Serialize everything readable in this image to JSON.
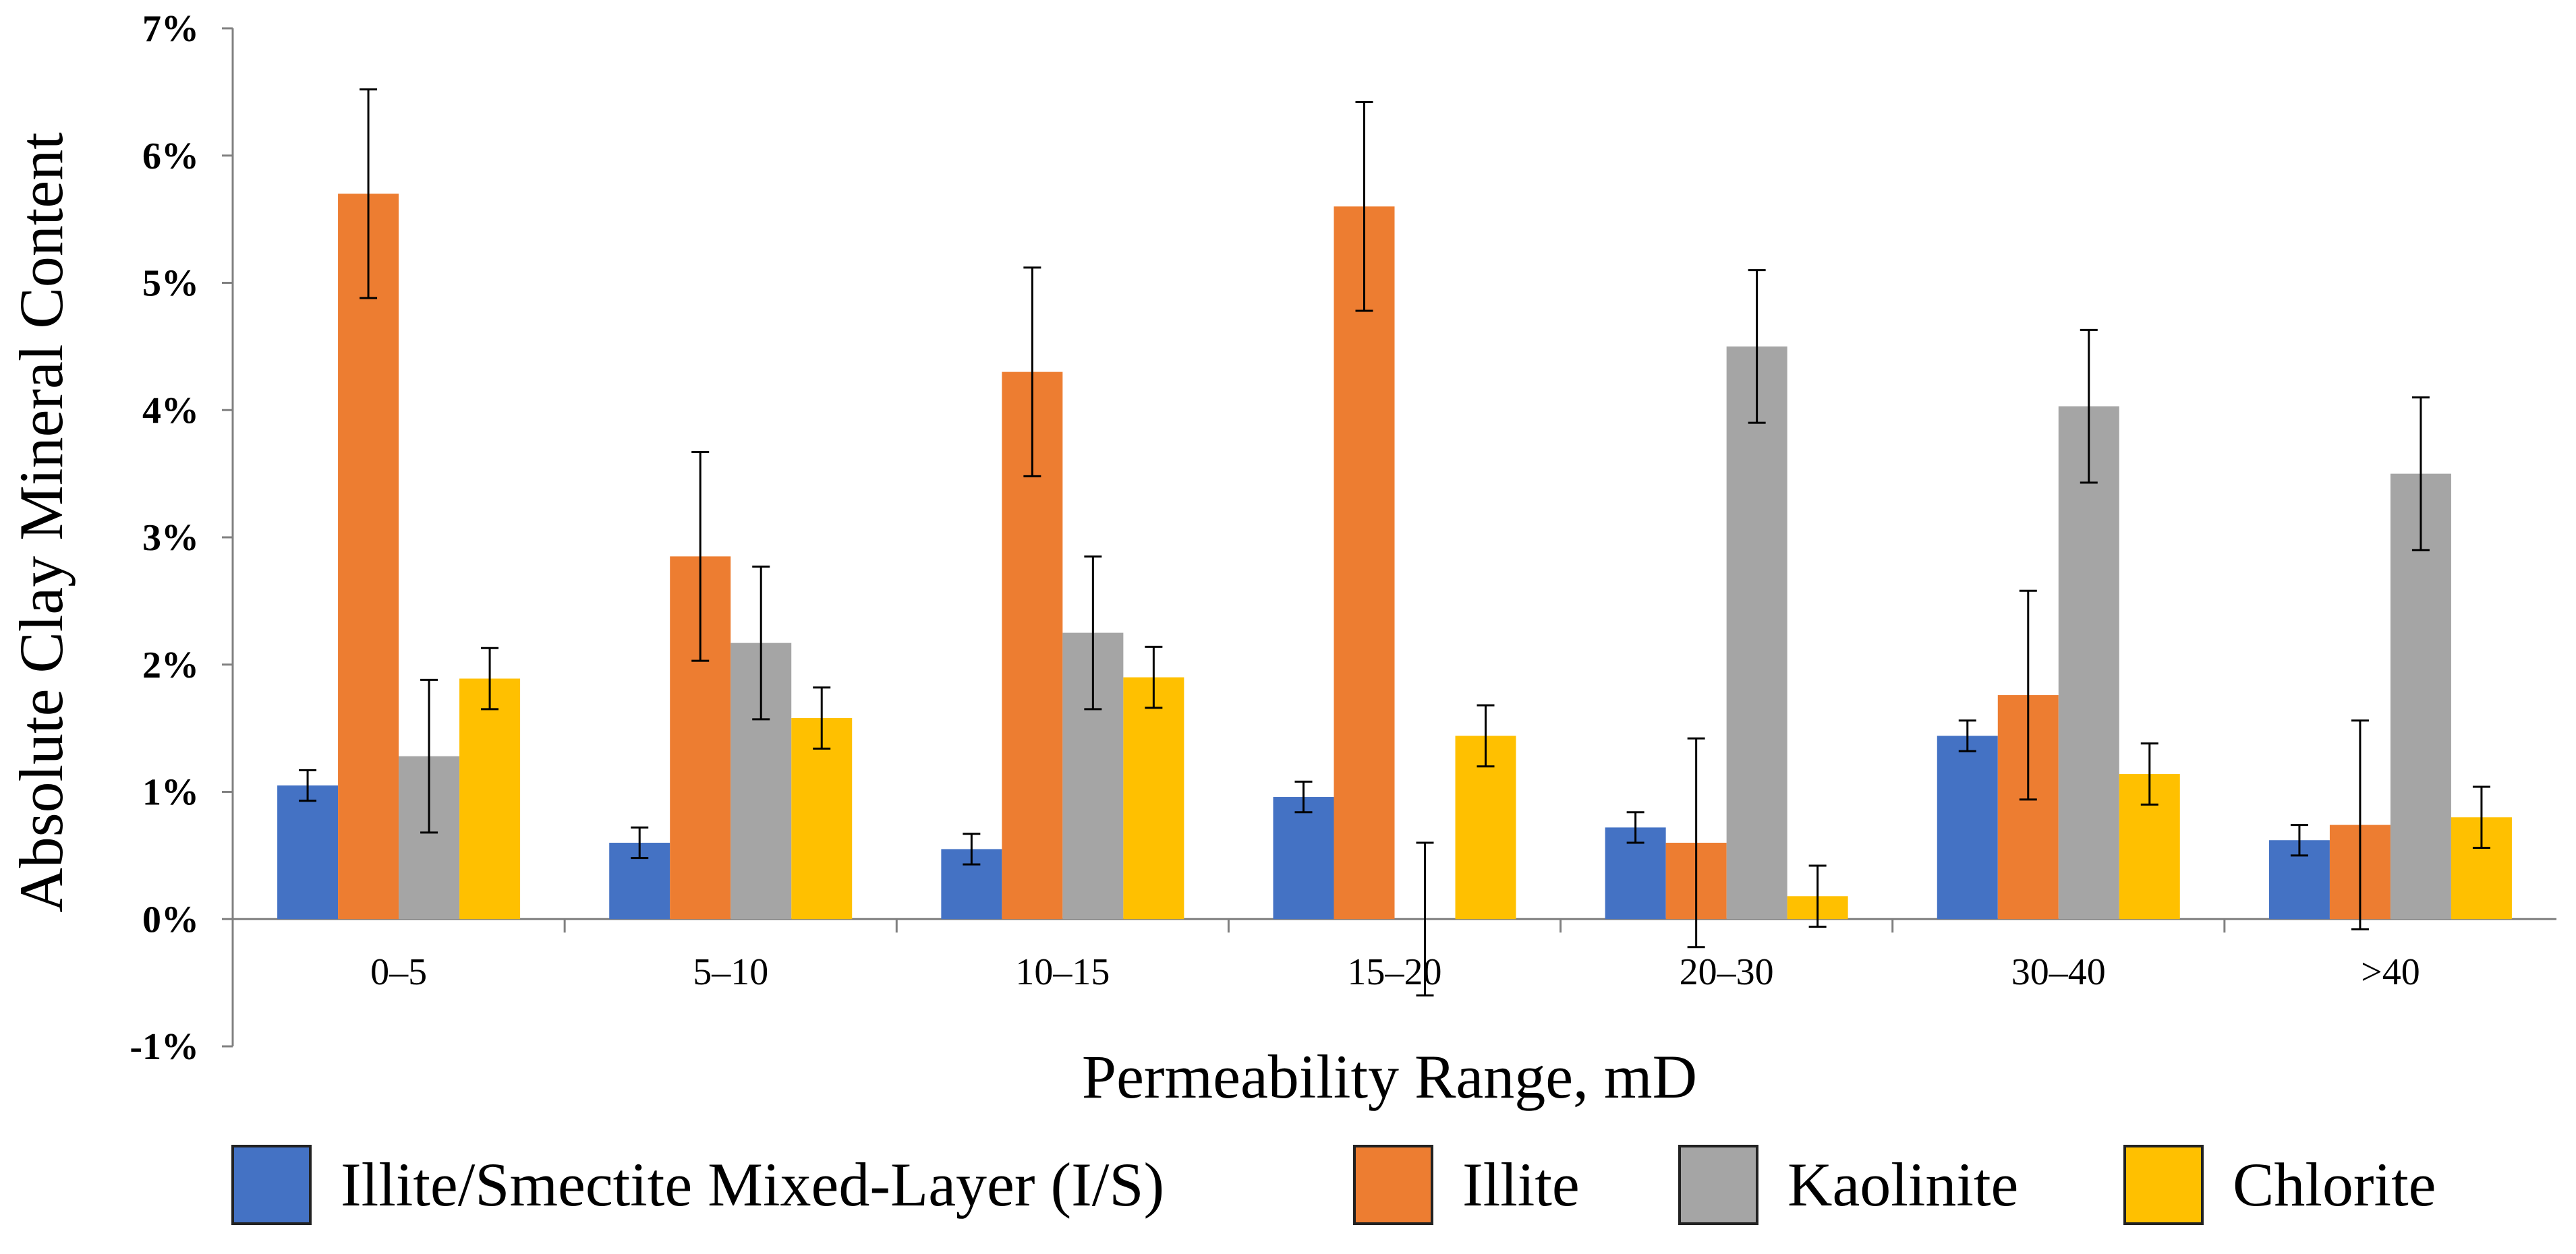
{
  "chart_data": {
    "type": "bar",
    "title": "",
    "xlabel": "Permeability Range, mD",
    "ylabel": "Absolute Clay Mineral Content",
    "ylim": [
      -1,
      7
    ],
    "yticks": [
      -1,
      0,
      1,
      2,
      3,
      4,
      5,
      6,
      7
    ],
    "ytick_labels": [
      "-1%",
      "0%",
      "1%",
      "2%",
      "3%",
      "4%",
      "5%",
      "6%",
      "7%"
    ],
    "grid": false,
    "legend_position": "bottom",
    "categories": [
      "0–5",
      "5–10",
      "10–15",
      "15–20",
      "20–30",
      "30–40",
      ">40"
    ],
    "series": [
      {
        "name": "Illite/Smectite Mixed-Layer (I/S)",
        "color": "#4472C4",
        "values": [
          1.05,
          0.6,
          0.55,
          0.96,
          0.72,
          1.44,
          0.62
        ],
        "error": [
          0.12,
          0.12,
          0.12,
          0.12,
          0.12,
          0.12,
          0.12
        ]
      },
      {
        "name": "Illite",
        "color": "#ED7D31",
        "values": [
          5.7,
          2.85,
          4.3,
          5.6,
          0.6,
          1.76,
          0.74
        ],
        "error": [
          0.82,
          0.82,
          0.82,
          0.82,
          0.82,
          0.82,
          0.82
        ]
      },
      {
        "name": "Kaolinite",
        "color": "#A5A5A5",
        "values": [
          1.28,
          2.17,
          2.25,
          0.0,
          4.5,
          4.03,
          3.5
        ],
        "error": [
          0.6,
          0.6,
          0.6,
          0.6,
          0.6,
          0.6,
          0.6
        ]
      },
      {
        "name": "Chlorite",
        "color": "#FFC000",
        "values": [
          1.89,
          1.58,
          1.9,
          1.44,
          0.18,
          1.14,
          0.8
        ],
        "error": [
          0.24,
          0.24,
          0.24,
          0.24,
          0.24,
          0.24,
          0.24
        ]
      }
    ]
  },
  "colors": {
    "axis": "#808080",
    "error_bar": "#000000",
    "text": "#000000",
    "background": "#ffffff"
  }
}
